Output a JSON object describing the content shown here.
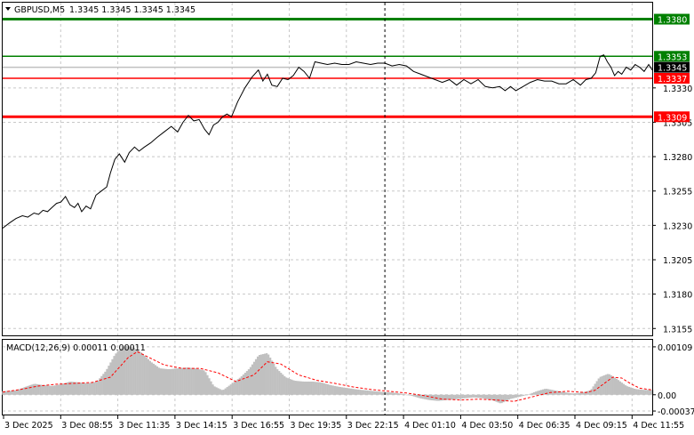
{
  "header": {
    "symbol": "GBPUSD,M5",
    "ohlc": "1.3345 1.3345 1.3345 1.3345"
  },
  "price_axis": {
    "ticks": [
      "1.3330",
      "1.3305",
      "1.3280",
      "1.3255",
      "1.3230",
      "1.3205",
      "1.3180",
      "1.3155"
    ]
  },
  "levels": [
    {
      "label": "1.3380",
      "value": 1.338,
      "color": "#008000",
      "tag_bg": "#008000",
      "tag_fg": "#ffffff"
    },
    {
      "label": "1.3353",
      "value": 1.3353,
      "color": "#008000",
      "tag_bg": "#008000",
      "tag_fg": "#ffffff"
    },
    {
      "label": "1.3345",
      "value": 1.3345,
      "color": "#c0c0c0",
      "tag_bg": "#000000",
      "tag_fg": "#ffffff"
    },
    {
      "label": "1.3337",
      "value": 1.3337,
      "color": "#ff0000",
      "tag_bg": "#ff0000",
      "tag_fg": "#ffffff"
    },
    {
      "label": "1.3309",
      "value": 1.3309,
      "color": "#ff0000",
      "tag_bg": "#ff0000",
      "tag_fg": "#ffffff"
    }
  ],
  "macd": {
    "label": "MACD(12,26,9) 0.00011 0.00011",
    "ticks": [
      "0.00109",
      "0.00",
      "-0.00037"
    ]
  },
  "time_axis": {
    "labels": [
      "3 Dec 2025",
      "3 Dec 08:55",
      "3 Dec 11:35",
      "3 Dec 14:15",
      "3 Dec 16:55",
      "3 Dec 19:35",
      "3 Dec 22:15",
      "4 Dec 01:10",
      "4 Dec 03:50",
      "4 Dec 06:35",
      "4 Dec 09:15",
      "4 Dec 11:55"
    ]
  },
  "colors": {
    "background": "#ffffff",
    "price_line": "#000000",
    "grid": "#c8c8c8",
    "macd_hist": "#c0c0c0",
    "macd_signal": "#ff0000",
    "crosshair": "#000000"
  },
  "chart_data": {
    "type": "line",
    "series": [
      {
        "name": "GBPUSD,M5",
        "x_index": [
          0,
          8,
          15,
          22,
          28,
          35,
          40,
          45,
          50,
          55,
          60,
          65,
          70,
          75,
          80,
          84,
          88,
          93,
          98,
          104,
          110,
          116,
          120,
          125,
          130,
          136,
          141,
          147,
          152,
          158,
          165,
          172,
          180,
          188,
          195,
          201,
          207,
          213,
          219,
          225,
          230,
          235,
          240,
          245,
          250,
          255,
          262,
          270,
          278,
          285,
          290,
          295,
          300,
          306,
          312,
          318,
          324,
          330,
          336,
          342,
          348,
          355,
          362,
          370,
          378,
          386,
          394,
          402,
          410,
          418,
          426,
          434,
          442,
          450,
          458,
          466,
          474,
          482,
          490,
          498,
          506,
          514,
          522,
          530,
          538,
          546,
          554,
          560,
          566,
          572,
          580,
          588,
          596,
          604,
          612,
          620,
          628,
          636,
          644,
          650,
          656,
          661,
          666,
          670,
          674,
          678,
          682,
          686,
          690,
          695,
          700,
          705,
          710,
          715,
          720,
          724
        ],
        "values": [
          1.3228,
          1.3232,
          1.3235,
          1.3237,
          1.3236,
          1.3239,
          1.3238,
          1.3241,
          1.324,
          1.3243,
          1.3246,
          1.3247,
          1.3251,
          1.3245,
          1.3243,
          1.3246,
          1.324,
          1.3244,
          1.3242,
          1.3252,
          1.3255,
          1.3258,
          1.3268,
          1.3278,
          1.3282,
          1.3276,
          1.3283,
          1.3287,
          1.3284,
          1.3287,
          1.329,
          1.3294,
          1.3298,
          1.3302,
          1.3298,
          1.3305,
          1.331,
          1.3306,
          1.3307,
          1.33,
          1.3296,
          1.3303,
          1.3305,
          1.3309,
          1.3311,
          1.3309,
          1.332,
          1.333,
          1.3338,
          1.3343,
          1.3335,
          1.334,
          1.3332,
          1.3331,
          1.3337,
          1.3336,
          1.3339,
          1.3345,
          1.3342,
          1.3337,
          1.3349,
          1.3348,
          1.3347,
          1.3348,
          1.3347,
          1.3347,
          1.3349,
          1.3348,
          1.3347,
          1.3348,
          1.3348,
          1.3346,
          1.3347,
          1.3346,
          1.3342,
          1.334,
          1.3338,
          1.3336,
          1.3334,
          1.3336,
          1.3332,
          1.3336,
          1.3333,
          1.3336,
          1.3331,
          1.333,
          1.3331,
          1.3328,
          1.3331,
          1.3328,
          1.3331,
          1.3334,
          1.3336,
          1.3335,
          1.3335,
          1.3333,
          1.3333,
          1.3336,
          1.3332,
          1.3336,
          1.3337,
          1.3341,
          1.3353,
          1.3354,
          1.3349,
          1.3345,
          1.3339,
          1.3342,
          1.334,
          1.3345,
          1.3343,
          1.3347,
          1.3345,
          1.3342,
          1.3347,
          1.3343
        ]
      },
      {
        "name": "MACD(12,26,9)",
        "x_index": [
          0,
          15,
          25,
          35,
          45,
          55,
          65,
          75,
          85,
          95,
          105,
          115,
          125,
          135,
          145,
          155,
          165,
          175,
          185,
          195,
          205,
          215,
          225,
          235,
          245,
          255,
          265,
          275,
          285,
          295,
          305,
          315,
          325,
          335,
          345,
          355,
          365,
          375,
          385,
          395,
          405,
          415,
          425,
          435,
          445,
          455,
          465,
          475,
          485,
          495,
          505,
          515,
          525,
          535,
          545,
          555,
          565,
          575,
          585,
          595,
          605,
          615,
          625,
          635,
          645,
          655,
          665,
          675,
          685,
          695,
          705,
          715,
          724
        ],
        "values": [
          8e-05,
          0.0001,
          0.00018,
          0.00025,
          0.00022,
          0.0002,
          0.00024,
          0.0003,
          0.00028,
          0.00026,
          0.0003,
          0.00055,
          0.00092,
          0.00112,
          0.00108,
          0.00095,
          0.00075,
          0.0006,
          0.00058,
          0.0006,
          0.00062,
          0.0006,
          0.00055,
          0.0002,
          0.0001,
          0.00025,
          0.0004,
          0.0006,
          0.0009,
          0.00095,
          0.0006,
          0.0004,
          0.00032,
          0.0003,
          0.0003,
          0.00028,
          0.00022,
          0.00018,
          0.00015,
          0.00012,
          0.0001,
          8e-05,
          6e-05,
          5e-05,
          2e-05,
          -2e-05,
          -8e-05,
          -0.00012,
          -0.00014,
          -0.00012,
          -0.0001,
          -8e-05,
          -6e-05,
          -8e-05,
          -0.00012,
          -0.0002,
          -0.0001,
          -5e-05,
          0.0,
          8e-05,
          0.00014,
          0.0001,
          6e-05,
          3e-05,
          5e-05,
          0.0001,
          0.0004,
          0.00048,
          0.00035,
          0.0002,
          0.00013,
          0.00011,
          0.00011
        ]
      },
      {
        "name": "Signal",
        "x_index": [
          0,
          20,
          40,
          60,
          80,
          100,
          120,
          140,
          150,
          160,
          180,
          200,
          220,
          240,
          260,
          280,
          295,
          310,
          330,
          350,
          370,
          390,
          410,
          430,
          450,
          470,
          490,
          510,
          530,
          550,
          570,
          590,
          610,
          630,
          650,
          660,
          670,
          680,
          690,
          700,
          710,
          724
        ],
        "values": [
          6e-05,
          0.00012,
          0.0002,
          0.00024,
          0.00026,
          0.00028,
          0.0004,
          0.00085,
          0.00098,
          0.00088,
          0.00068,
          0.0006,
          0.0006,
          0.0005,
          0.0003,
          0.00045,
          0.00075,
          0.0007,
          0.00045,
          0.00033,
          0.00026,
          0.00018,
          0.00012,
          8e-05,
          4e-05,
          -2e-05,
          -0.0001,
          -0.00012,
          -0.0001,
          -0.00012,
          -0.00015,
          -5e-05,
          5e-05,
          8e-05,
          5e-05,
          0.0001,
          0.00025,
          0.0004,
          0.00038,
          0.00025,
          0.00015,
          0.00011
        ]
      }
    ],
    "x_range": [
      0,
      724
    ],
    "y_range_price": [
      1.315,
      1.3392
    ],
    "y_range_macd": [
      -0.00045,
      0.00125
    ],
    "crosshair_x_index": 426
  }
}
